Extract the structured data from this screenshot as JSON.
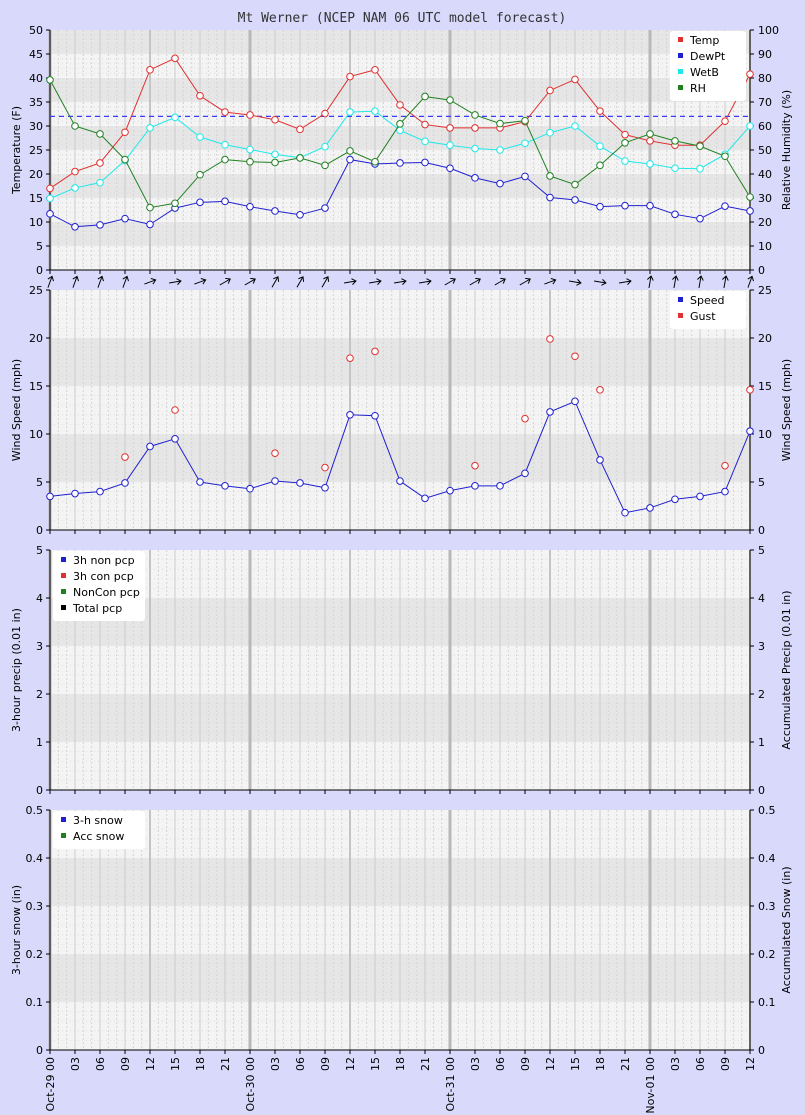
{
  "title": "Mt Werner (NCEP NAM 06 UTC model forecast)",
  "colors": {
    "temp": "#e03030",
    "dewpt": "#2020d0",
    "wetb": "#20e8e8",
    "rh": "#208020",
    "gust": "#e03030",
    "speed": "#2020d0",
    "freeze": "#3a3aff",
    "background": "#d9d9fb",
    "plot_bg": "#f4f4f4",
    "band": "#e6e6e6"
  },
  "x_axis": {
    "tick_labels": [
      "Oct-29 00",
      "03",
      "06",
      "09",
      "12",
      "15",
      "18",
      "21",
      "Oct-30 00",
      "03",
      "06",
      "09",
      "12",
      "15",
      "18",
      "21",
      "Oct-31 00",
      "03",
      "06",
      "09",
      "12",
      "15",
      "18",
      "21",
      "Nov-01 00",
      "03",
      "06",
      "09",
      "12"
    ],
    "day_label_indices": [
      0,
      8,
      16,
      24
    ]
  },
  "wind_directions_deg": [
    200,
    200,
    200,
    200,
    250,
    260,
    250,
    240,
    240,
    210,
    210,
    210,
    260,
    260,
    260,
    260,
    240,
    240,
    240,
    240,
    250,
    280,
    280,
    260,
    190,
    190,
    190,
    190,
    200
  ],
  "chart_data": [
    {
      "type": "line",
      "ylabel": "Temperature (F)",
      "y2label": "Relative Humidity (%)",
      "ylim": [
        0,
        50
      ],
      "y2lim": [
        0,
        100
      ],
      "yticks": [
        0,
        5,
        10,
        15,
        20,
        25,
        30,
        35,
        40,
        45,
        50
      ],
      "y2ticks": [
        0,
        10,
        20,
        30,
        40,
        50,
        60,
        70,
        80,
        90,
        100
      ],
      "freezing_line": 32,
      "legend": {
        "placement": "top-right",
        "entries": [
          "Temp",
          "DewPt",
          "WetB",
          "RH"
        ]
      },
      "series": [
        {
          "name": "Temp",
          "color_key": "temp",
          "axis": "left",
          "values": [
            17,
            20.5,
            22.3,
            28.7,
            41.7,
            44.1,
            36.3,
            32.9,
            32.3,
            31.3,
            29.3,
            32.6,
            40.3,
            41.7,
            34.4,
            30.3,
            29.6,
            29.6,
            29.6,
            30.9,
            37.4,
            39.7,
            33.1,
            28.2,
            26.9,
            26.0,
            26.0,
            31.0,
            40.8
          ]
        },
        {
          "name": "DewPt",
          "color_key": "dewpt",
          "axis": "left",
          "values": [
            11.7,
            9.0,
            9.4,
            10.7,
            9.5,
            12.9,
            14.1,
            14.3,
            13.2,
            12.3,
            11.5,
            12.9,
            23.0,
            22.1,
            22.3,
            22.4,
            21.2,
            19.2,
            18.0,
            19.5,
            15.1,
            14.6,
            13.2,
            13.4,
            13.4,
            11.6,
            10.7,
            13.3,
            12.3
          ]
        },
        {
          "name": "WetB",
          "color_key": "wetb",
          "axis": "left",
          "values": [
            14.9,
            17.1,
            18.2,
            22.8,
            29.6,
            31.8,
            27.7,
            26.1,
            25.1,
            24.1,
            23.4,
            25.7,
            32.9,
            33.1,
            29.1,
            26.8,
            26.0,
            25.3,
            25.0,
            26.4,
            28.6,
            30.0,
            25.8,
            22.7,
            22.1,
            21.2,
            21.1,
            24.1,
            30.0
          ]
        },
        {
          "name": "RH",
          "color_key": "rh",
          "axis": "right",
          "values": [
            79.2,
            60.0,
            56.7,
            46.0,
            26.0,
            27.8,
            39.7,
            46.0,
            45.1,
            44.8,
            46.7,
            43.6,
            49.6,
            45.1,
            60.9,
            72.3,
            70.8,
            64.6,
            61.0,
            62.2,
            39.2,
            35.6,
            43.6,
            53.0,
            56.7,
            53.8,
            51.6,
            47.4,
            30.4
          ]
        }
      ]
    },
    {
      "type": "line",
      "ylabel": "Wind Speed (mph)",
      "y2label": "Wind Speed (mph)",
      "ylim": [
        0,
        25
      ],
      "yticks": [
        0,
        5,
        10,
        15,
        20,
        25
      ],
      "legend": {
        "placement": "top-right",
        "entries": [
          "Speed",
          "Gust"
        ]
      },
      "series": [
        {
          "name": "Speed",
          "color_key": "speed",
          "mode": "line",
          "values": [
            3.5,
            3.8,
            4.0,
            4.9,
            8.7,
            9.5,
            5.0,
            4.6,
            4.3,
            5.1,
            4.9,
            4.4,
            12.0,
            11.9,
            5.1,
            3.3,
            4.1,
            4.6,
            4.6,
            5.9,
            12.3,
            13.4,
            7.3,
            1.8,
            2.3,
            3.2,
            3.5,
            4.0,
            10.3
          ]
        },
        {
          "name": "Gust",
          "color_key": "gust",
          "mode": "points",
          "values": [
            null,
            null,
            null,
            7.6,
            null,
            12.5,
            null,
            null,
            null,
            8.0,
            null,
            6.5,
            17.9,
            18.6,
            null,
            null,
            null,
            6.7,
            null,
            11.6,
            19.9,
            18.1,
            14.6,
            null,
            null,
            null,
            null,
            6.7,
            14.6
          ]
        }
      ]
    },
    {
      "type": "line",
      "ylabel": "3-hour precip (0.01 in)",
      "y2label": "Accumulated Precip (0.01 in)",
      "ylim": [
        0,
        5
      ],
      "yticks": [
        0,
        1,
        2,
        3,
        4,
        5
      ],
      "legend": {
        "placement": "top-left",
        "entries": [
          "3h non pcp",
          "3h con pcp",
          "NonCon pcp",
          "Total pcp"
        ]
      },
      "legend_colors": [
        "#2020d0",
        "#e03030",
        "#208020",
        "#000000"
      ],
      "series": []
    },
    {
      "type": "line",
      "ylabel": "3-hour snow (in)",
      "y2label": "Accumulated Snow (in)",
      "ylim": [
        0,
        0.5
      ],
      "yticks": [
        0,
        0.1,
        0.2,
        0.3,
        0.4,
        0.5
      ],
      "legend": {
        "placement": "top-left",
        "entries": [
          "3-h snow",
          "Acc snow"
        ]
      },
      "legend_colors": [
        "#2020d0",
        "#208020"
      ],
      "series": []
    }
  ]
}
